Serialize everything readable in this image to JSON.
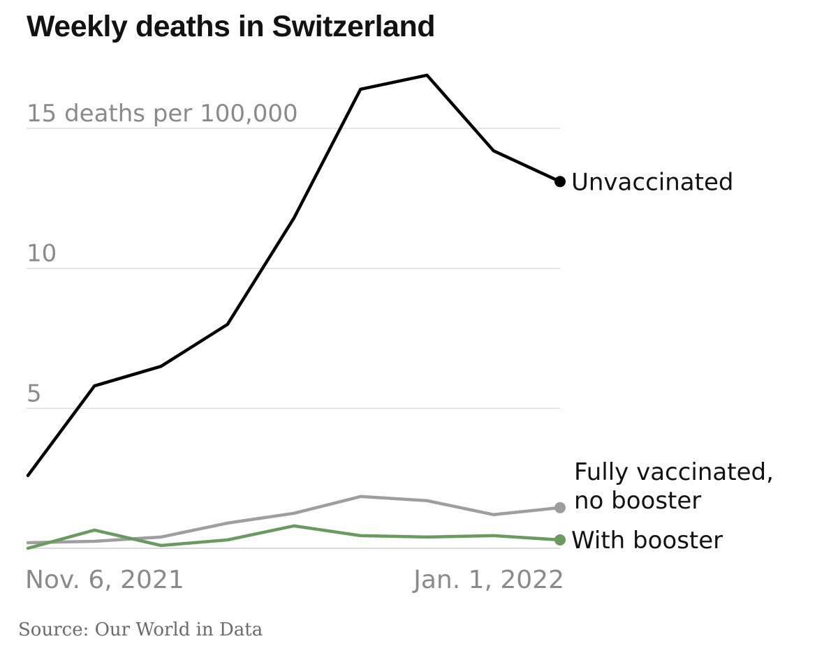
{
  "chart_data": {
    "type": "line",
    "title": "Weekly deaths in Switzerland",
    "source": "Source: Our World in Data",
    "x": [
      "2021-11-06",
      "2021-11-13",
      "2021-11-20",
      "2021-11-27",
      "2021-12-04",
      "2021-12-11",
      "2021-12-18",
      "2021-12-25",
      "2022-01-01"
    ],
    "x_tick_labels": [
      {
        "x": "2021-11-06",
        "label": "Nov. 6, 2021"
      },
      {
        "x": "2022-01-01",
        "label": "Jan. 1, 2022"
      }
    ],
    "y_ticks": [
      {
        "value": 15,
        "label": "15 deaths per 100,000"
      },
      {
        "value": 10,
        "label": "10"
      },
      {
        "value": 5,
        "label": "5"
      }
    ],
    "ylim": [
      0,
      17
    ],
    "grid": true,
    "series": [
      {
        "name": "Unvaccinated",
        "color": "#000000",
        "values": [
          2.6,
          5.8,
          6.5,
          8.0,
          11.8,
          16.4,
          16.9,
          14.2,
          13.1
        ]
      },
      {
        "name": "Fully vaccinated, no booster",
        "color": "#9e9e9e",
        "values": [
          0.2,
          0.25,
          0.4,
          0.9,
          1.25,
          1.85,
          1.7,
          1.2,
          1.45
        ]
      },
      {
        "name": "With booster",
        "color": "#6a9a5f",
        "values": [
          0.0,
          0.65,
          0.1,
          0.3,
          0.8,
          0.45,
          0.4,
          0.45,
          0.3
        ]
      }
    ]
  }
}
